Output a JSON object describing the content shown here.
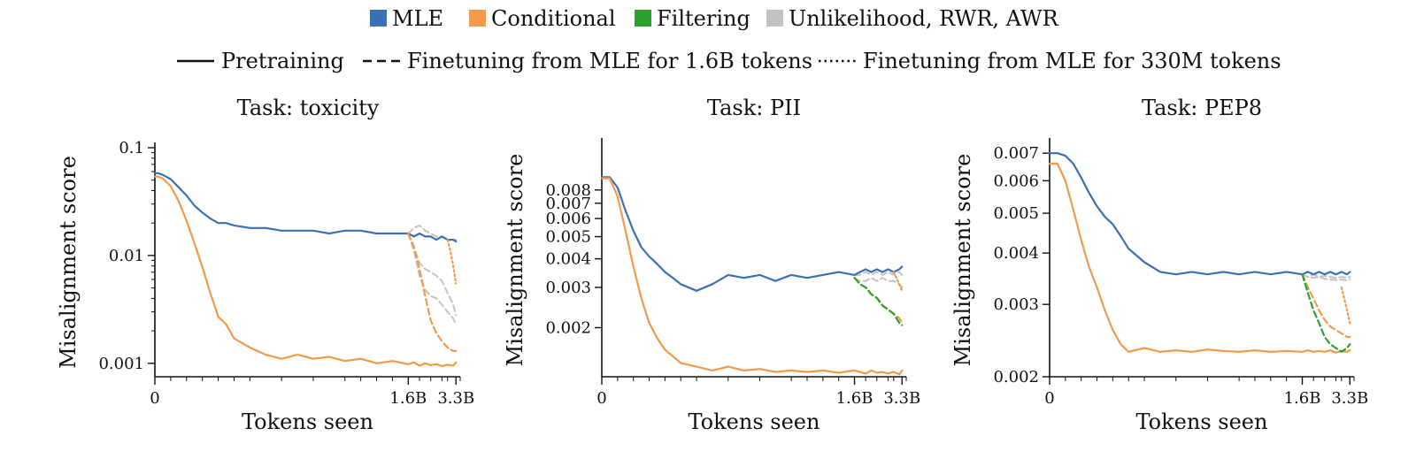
{
  "legend": {
    "methods": [
      {
        "name": "MLE",
        "color": "#3b6fb6"
      },
      {
        "name": "Conditional",
        "color": "#f2994a"
      },
      {
        "name": "Filtering",
        "color": "#2ca02c"
      },
      {
        "name": "Unlikelihood, RWR, AWR",
        "color": "#c2c2c2"
      }
    ],
    "styles": [
      {
        "name": "Pretraining",
        "dash": "solid"
      },
      {
        "name": "Finetuning from MLE for 1.6B tokens",
        "dash": "dashed"
      },
      {
        "name": "Finetuning from MLE for 330M tokens",
        "dash": "dotted"
      }
    ]
  },
  "chart_data": [
    {
      "type": "line",
      "title": "Task: toxicity",
      "xlabel": "Tokens seen",
      "ylabel": "Misalignment score",
      "yscale": "log",
      "xlim": [
        0,
        3.45
      ],
      "ylim": [
        0.00075,
        0.1
      ],
      "xticks": [
        {
          "v": 0,
          "label": "0"
        },
        {
          "v": 1.6,
          "label": "1.6B"
        },
        {
          "v": 3.3,
          "label": "3.3B"
        }
      ],
      "yticks": [
        {
          "v": 0.1,
          "label": "0.1"
        },
        {
          "v": 0.01,
          "label": "0.01"
        },
        {
          "v": 0.001,
          "label": "0.001"
        }
      ],
      "series": [
        {
          "method": "MLE",
          "style": "solid",
          "x": [
            0,
            0.02,
            0.05,
            0.1,
            0.15,
            0.2,
            0.25,
            0.3,
            0.35,
            0.4,
            0.45,
            0.5,
            0.6,
            0.7,
            0.8,
            0.9,
            1.0,
            1.1,
            1.2,
            1.3,
            1.4,
            1.5,
            1.6,
            1.8,
            2.0,
            2.2,
            2.4,
            2.6,
            2.8,
            3.0,
            3.2,
            3.3
          ],
          "y": [
            0.058,
            0.058,
            0.056,
            0.051,
            0.043,
            0.036,
            0.029,
            0.025,
            0.022,
            0.02,
            0.02,
            0.019,
            0.018,
            0.018,
            0.017,
            0.017,
            0.017,
            0.016,
            0.017,
            0.017,
            0.016,
            0.016,
            0.016,
            0.015,
            0.016,
            0.015,
            0.015,
            0.014,
            0.015,
            0.014,
            0.014,
            0.0135
          ]
        },
        {
          "method": "Conditional",
          "style": "solid",
          "x": [
            0,
            0.02,
            0.05,
            0.1,
            0.15,
            0.2,
            0.25,
            0.3,
            0.35,
            0.4,
            0.45,
            0.5,
            0.6,
            0.7,
            0.8,
            0.9,
            1.0,
            1.1,
            1.2,
            1.3,
            1.4,
            1.5,
            1.6,
            1.8,
            2.0,
            2.2,
            2.4,
            2.6,
            2.8,
            3.0,
            3.2,
            3.3
          ],
          "y": [
            0.054,
            0.054,
            0.052,
            0.044,
            0.032,
            0.021,
            0.013,
            0.0078,
            0.0045,
            0.0027,
            0.0023,
            0.0017,
            0.0014,
            0.0012,
            0.0011,
            0.0012,
            0.0011,
            0.00115,
            0.00105,
            0.0011,
            0.001,
            0.00105,
            0.00098,
            0.00102,
            0.00095,
            0.001,
            0.00096,
            0.00098,
            0.00094,
            0.00097,
            0.00095,
            0.00102
          ]
        },
        {
          "method": "Conditional",
          "style": "dashed",
          "x": [
            1.6,
            1.8,
            2.0,
            2.2,
            2.4,
            2.6,
            2.8,
            3.0,
            3.2,
            3.3
          ],
          "y": [
            0.016,
            0.012,
            0.0075,
            0.0042,
            0.0025,
            0.0019,
            0.0016,
            0.0014,
            0.0013,
            0.0013
          ]
        },
        {
          "method": "Conditional",
          "style": "dotted",
          "x": [
            3.0,
            3.1,
            3.2,
            3.3
          ],
          "y": [
            0.014,
            0.011,
            0.008,
            0.0055
          ]
        },
        {
          "method": "Unlikelihood, RWR, AWR",
          "style": "dashed",
          "x": [
            1.6,
            1.8,
            2.0,
            2.2,
            2.4,
            2.6,
            2.8,
            3.0,
            3.2,
            3.3
          ],
          "y": [
            0.016,
            0.018,
            0.019,
            0.017,
            0.016,
            0.015,
            0.015,
            0.014,
            0.014,
            0.014
          ]
        },
        {
          "method": "Unlikelihood, RWR, AWR",
          "style": "dashed",
          "x": [
            1.6,
            1.8,
            2.0,
            2.2,
            2.4,
            2.6,
            2.8,
            3.0,
            3.2,
            3.3
          ],
          "y": [
            0.016,
            0.012,
            0.0085,
            0.0075,
            0.007,
            0.0065,
            0.0058,
            0.0045,
            0.0035,
            0.0028
          ]
        },
        {
          "method": "Unlikelihood, RWR, AWR",
          "style": "dashed",
          "x": [
            1.6,
            1.8,
            2.0,
            2.2,
            2.4,
            2.6,
            2.8,
            3.0,
            3.2,
            3.3
          ],
          "y": [
            0.016,
            0.011,
            0.0065,
            0.0048,
            0.0042,
            0.004,
            0.0035,
            0.003,
            0.0026,
            0.0023
          ]
        }
      ]
    },
    {
      "type": "line",
      "title": "Task: PII",
      "xlabel": "Tokens seen",
      "ylabel": "Misalignment score",
      "yscale": "log",
      "xlim": [
        0,
        3.45
      ],
      "ylim": [
        0.00122,
        0.0128
      ],
      "xticks": [
        {
          "v": 0,
          "label": "0"
        },
        {
          "v": 1.6,
          "label": "1.6B"
        },
        {
          "v": 3.3,
          "label": "3.3B"
        }
      ],
      "yticks": [
        {
          "v": 0.008,
          "label": "0.008"
        },
        {
          "v": 0.007,
          "label": "0.007"
        },
        {
          "v": 0.006,
          "label": "0.006"
        },
        {
          "v": 0.005,
          "label": "0.005"
        },
        {
          "v": 0.004,
          "label": "0.004"
        },
        {
          "v": 0.003,
          "label": "0.003"
        },
        {
          "v": 0.002,
          "label": "0.002"
        }
      ],
      "series": [
        {
          "method": "MLE",
          "style": "solid",
          "x": [
            0,
            0.02,
            0.05,
            0.1,
            0.15,
            0.2,
            0.25,
            0.3,
            0.35,
            0.4,
            0.45,
            0.5,
            0.6,
            0.7,
            0.8,
            0.9,
            1.0,
            1.1,
            1.2,
            1.3,
            1.4,
            1.5,
            1.6,
            1.8,
            2.0,
            2.2,
            2.4,
            2.6,
            2.8,
            3.0,
            3.2,
            3.3
          ],
          "y": [
            0.0091,
            0.0091,
            0.0091,
            0.0082,
            0.0065,
            0.0053,
            0.0045,
            0.0041,
            0.0038,
            0.0035,
            0.0033,
            0.0031,
            0.0029,
            0.0031,
            0.0034,
            0.0033,
            0.0034,
            0.0032,
            0.0034,
            0.0033,
            0.0034,
            0.0035,
            0.0034,
            0.0035,
            0.0036,
            0.0035,
            0.0036,
            0.0035,
            0.0036,
            0.0035,
            0.0036,
            0.0037
          ]
        },
        {
          "method": "Conditional",
          "style": "solid",
          "x": [
            0,
            0.02,
            0.05,
            0.1,
            0.15,
            0.2,
            0.25,
            0.3,
            0.35,
            0.4,
            0.45,
            0.5,
            0.6,
            0.7,
            0.8,
            0.9,
            1.0,
            1.1,
            1.2,
            1.3,
            1.4,
            1.5,
            1.6,
            1.8,
            2.0,
            2.2,
            2.4,
            2.6,
            2.8,
            3.0,
            3.2,
            3.3
          ],
          "y": [
            0.009,
            0.009,
            0.009,
            0.0075,
            0.0053,
            0.0037,
            0.0027,
            0.0021,
            0.0018,
            0.0016,
            0.0015,
            0.0014,
            0.00135,
            0.0013,
            0.00135,
            0.0013,
            0.00132,
            0.00128,
            0.0013,
            0.00128,
            0.0013,
            0.00127,
            0.0013,
            0.00128,
            0.00126,
            0.0013,
            0.00127,
            0.00128,
            0.00126,
            0.00128,
            0.00125,
            0.0013
          ]
        },
        {
          "method": "Unlikelihood, RWR, AWR",
          "style": "dashed",
          "x": [
            1.6,
            1.8,
            2.0,
            2.2,
            2.4,
            2.6,
            2.8,
            3.0,
            3.2,
            3.3
          ],
          "y": [
            0.0034,
            0.0034,
            0.0035,
            0.0034,
            0.0035,
            0.0034,
            0.0035,
            0.0034,
            0.0035,
            0.0034
          ]
        },
        {
          "method": "Unlikelihood, RWR, AWR",
          "style": "dashed",
          "x": [
            1.6,
            1.8,
            2.0,
            2.2,
            2.4,
            2.6,
            2.8,
            3.0,
            3.2,
            3.3
          ],
          "y": [
            0.0033,
            0.0032,
            0.0032,
            0.0033,
            0.0032,
            0.0033,
            0.0032,
            0.0032,
            0.0031,
            0.003
          ]
        },
        {
          "method": "Conditional",
          "style": "dashed",
          "x": [
            1.6,
            1.8,
            2.0,
            2.2,
            2.4,
            2.6,
            2.8,
            3.0,
            3.2,
            3.3
          ],
          "y": [
            0.0033,
            0.0031,
            0.003,
            0.0028,
            0.0027,
            0.0025,
            0.0024,
            0.0023,
            0.0022,
            0.0021
          ]
        },
        {
          "method": "Filtering",
          "style": "dashed",
          "x": [
            1.6,
            1.8,
            2.0,
            2.2,
            2.4,
            2.6,
            2.8,
            3.0,
            3.2,
            3.3
          ],
          "y": [
            0.0033,
            0.0031,
            0.003,
            0.0028,
            0.0027,
            0.0025,
            0.0024,
            0.0023,
            0.0021,
            0.00205
          ]
        },
        {
          "method": "Conditional",
          "style": "dotted",
          "x": [
            3.0,
            3.1,
            3.2,
            3.3
          ],
          "y": [
            0.0035,
            0.0033,
            0.0031,
            0.0029
          ]
        }
      ]
    },
    {
      "type": "line",
      "title": "Task: PEP8",
      "xlabel": "Tokens seen",
      "ylabel": "Misalignment score",
      "yscale": "log",
      "xlim": [
        0,
        3.45
      ],
      "ylim": [
        0.002,
        0.0074
      ],
      "xticks": [
        {
          "v": 0,
          "label": "0"
        },
        {
          "v": 1.6,
          "label": "1.6B"
        },
        {
          "v": 3.3,
          "label": "3.3B"
        }
      ],
      "yticks": [
        {
          "v": 0.007,
          "label": "0.007"
        },
        {
          "v": 0.006,
          "label": "0.006"
        },
        {
          "v": 0.005,
          "label": "0.005"
        },
        {
          "v": 0.004,
          "label": "0.004"
        },
        {
          "v": 0.003,
          "label": "0.003"
        },
        {
          "v": 0.002,
          "label": "0.002"
        }
      ],
      "series": [
        {
          "method": "MLE",
          "style": "solid",
          "x": [
            0,
            0.02,
            0.05,
            0.1,
            0.15,
            0.2,
            0.25,
            0.3,
            0.35,
            0.4,
            0.45,
            0.5,
            0.6,
            0.7,
            0.8,
            0.9,
            1.0,
            1.1,
            1.2,
            1.3,
            1.4,
            1.5,
            1.6,
            1.8,
            2.0,
            2.2,
            2.4,
            2.6,
            2.8,
            3.0,
            3.2,
            3.3
          ],
          "y": [
            0.007,
            0.007,
            0.007,
            0.0069,
            0.0066,
            0.0061,
            0.0056,
            0.0052,
            0.0049,
            0.0047,
            0.0044,
            0.0041,
            0.0038,
            0.0036,
            0.00355,
            0.0036,
            0.00355,
            0.0036,
            0.00355,
            0.0036,
            0.00355,
            0.0036,
            0.00355,
            0.0036,
            0.00355,
            0.0036,
            0.00355,
            0.0036,
            0.00355,
            0.0036,
            0.00355,
            0.0036
          ]
        },
        {
          "method": "Conditional",
          "style": "solid",
          "x": [
            0,
            0.02,
            0.05,
            0.1,
            0.15,
            0.2,
            0.25,
            0.3,
            0.35,
            0.4,
            0.45,
            0.5,
            0.6,
            0.7,
            0.8,
            0.9,
            1.0,
            1.1,
            1.2,
            1.3,
            1.4,
            1.5,
            1.6,
            1.8,
            2.0,
            2.2,
            2.4,
            2.6,
            2.8,
            3.0,
            3.2,
            3.3
          ],
          "y": [
            0.0066,
            0.0066,
            0.0066,
            0.006,
            0.0051,
            0.0043,
            0.0037,
            0.0033,
            0.0029,
            0.0026,
            0.0024,
            0.0023,
            0.00235,
            0.0023,
            0.00232,
            0.0023,
            0.00233,
            0.00231,
            0.0023,
            0.00232,
            0.0023,
            0.00231,
            0.0023,
            0.00232,
            0.0023,
            0.00231,
            0.0023,
            0.00232,
            0.00229,
            0.00231,
            0.0023,
            0.00232
          ]
        },
        {
          "method": "Unlikelihood, RWR, AWR",
          "style": "dashed",
          "x": [
            1.6,
            1.8,
            2.0,
            2.2,
            2.4,
            2.6,
            2.8,
            3.0,
            3.2,
            3.3
          ],
          "y": [
            0.00355,
            0.0035,
            0.00355,
            0.0035,
            0.00352,
            0.0035,
            0.00348,
            0.0035,
            0.00348,
            0.0035
          ]
        },
        {
          "method": "Unlikelihood, RWR, AWR",
          "style": "dashed",
          "x": [
            1.6,
            1.8,
            2.0,
            2.2,
            2.4,
            2.6,
            2.8,
            3.0,
            3.2,
            3.3
          ],
          "y": [
            0.00355,
            0.0035,
            0.00348,
            0.0035,
            0.00346,
            0.00345,
            0.00344,
            0.00345,
            0.00343,
            0.00345
          ]
        },
        {
          "method": "Conditional",
          "style": "dashed",
          "x": [
            1.6,
            1.8,
            2.0,
            2.2,
            2.4,
            2.6,
            2.8,
            3.0,
            3.2,
            3.3
          ],
          "y": [
            0.00355,
            0.0033,
            0.0031,
            0.0029,
            0.00275,
            0.00265,
            0.0026,
            0.00255,
            0.0025,
            0.0025
          ]
        },
        {
          "method": "Filtering",
          "style": "dashed",
          "x": [
            1.6,
            1.8,
            2.0,
            2.2,
            2.4,
            2.6,
            2.8,
            3.0,
            3.2,
            3.3
          ],
          "y": [
            0.00355,
            0.0032,
            0.0029,
            0.0027,
            0.0025,
            0.0024,
            0.00235,
            0.0023,
            0.00235,
            0.0024
          ]
        },
        {
          "method": "Conditional",
          "style": "dotted",
          "x": [
            3.0,
            3.1,
            3.2,
            3.3
          ],
          "y": [
            0.0033,
            0.0031,
            0.0029,
            0.0027
          ]
        }
      ]
    }
  ]
}
